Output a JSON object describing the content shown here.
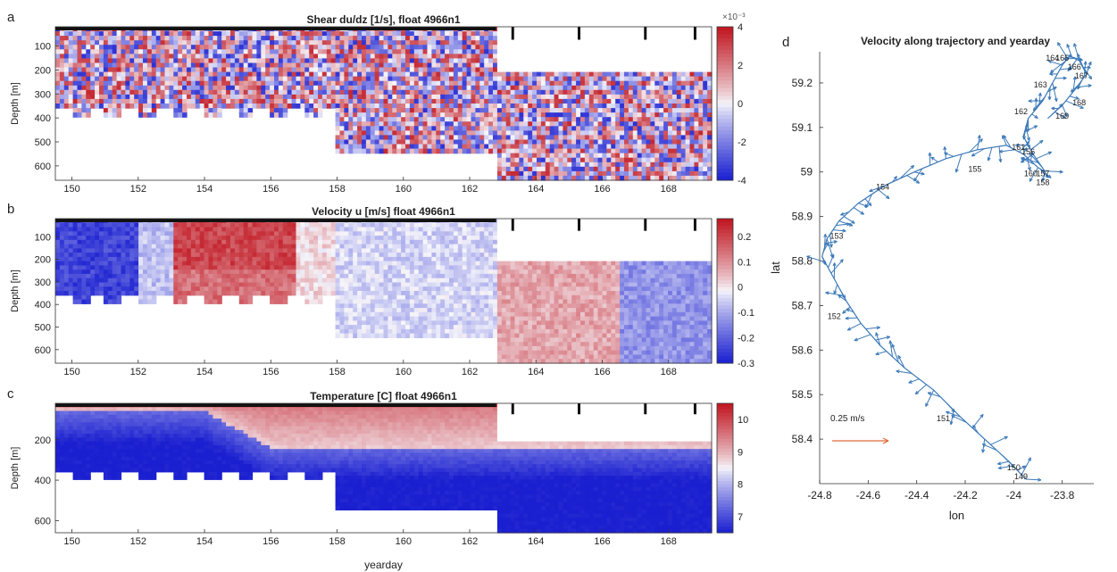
{
  "figure": {
    "colors": {
      "red": "#c0141e",
      "blue": "#1a1fd0",
      "white": "#f6f6fb",
      "traj": "#3a78b8",
      "arrow": "#e06a3a"
    }
  },
  "chart_data": [
    {
      "id": "a",
      "type": "heatmap",
      "panel_letter": "a",
      "title": "Shear du/dz [1/s], float 4966n1",
      "xlabel": "",
      "ylabel": "Depth [m]",
      "xlim": [
        149.5,
        169.3
      ],
      "ylim": [
        660,
        20
      ],
      "xticks": [
        "150",
        "152",
        "154",
        "156",
        "158",
        "160",
        "162",
        "164",
        "166",
        "168"
      ],
      "yticks": [
        "100",
        "200",
        "300",
        "400",
        "500",
        "600"
      ],
      "colorbar": {
        "ticks": [
          "4",
          "2",
          "0",
          "-2",
          "-4"
        ],
        "range": [
          -4,
          4
        ],
        "exponent": "×10⁻³"
      }
    },
    {
      "id": "b",
      "type": "heatmap",
      "panel_letter": "b",
      "title": "Velocity u [m/s] float 4966n1",
      "xlabel": "",
      "ylabel": "Depth [m]",
      "xlim": [
        149.5,
        169.3
      ],
      "ylim": [
        660,
        20
      ],
      "xticks": [
        "150",
        "152",
        "154",
        "156",
        "158",
        "160",
        "162",
        "164",
        "166",
        "168"
      ],
      "yticks": [
        "100",
        "200",
        "300",
        "400",
        "500",
        "600"
      ],
      "colorbar": {
        "ticks": [
          "0.2",
          "0.1",
          "0",
          "-0.1",
          "-0.2",
          "-0.3"
        ],
        "range": [
          -0.3,
          0.27
        ]
      }
    },
    {
      "id": "c",
      "type": "heatmap",
      "panel_letter": "c",
      "title": "Temperature [C] float 4966n1",
      "xlabel": "yearday",
      "ylabel": "Depth [m]",
      "xlim": [
        149.5,
        169.3
      ],
      "ylim": [
        660,
        20
      ],
      "xticks": [
        "150",
        "152",
        "154",
        "156",
        "158",
        "160",
        "162",
        "164",
        "166",
        "168"
      ],
      "yticks": [
        "200",
        "400",
        "600"
      ],
      "colorbar": {
        "ticks": [
          "10",
          "9",
          "8",
          "7"
        ],
        "range": [
          6.5,
          10.5
        ]
      }
    },
    {
      "id": "d",
      "type": "line",
      "panel_letter": "d",
      "title": "Velocity along trajectory and yearday",
      "xlabel": "lon",
      "ylabel": "lat",
      "xlim": [
        -24.8,
        -23.67
      ],
      "ylim": [
        58.3,
        59.27
      ],
      "xticks": [
        "-24.8",
        "-24.6",
        "-24.4",
        "-24.2",
        "-24",
        "-23.8"
      ],
      "yticks": [
        "59.2",
        "59.1",
        "59",
        "58.9",
        "58.8",
        "58.7",
        "58.6",
        "58.5",
        "58.4"
      ],
      "scale_label": "0.25 m/s",
      "trajectory": [
        {
          "lon": -23.95,
          "lat": 58.31
        },
        {
          "lon": -24.02,
          "lat": 58.35
        },
        {
          "lon": -24.12,
          "lat": 58.4
        },
        {
          "lon": -24.22,
          "lat": 58.45
        },
        {
          "lon": -24.33,
          "lat": 58.51
        },
        {
          "lon": -24.45,
          "lat": 58.56
        },
        {
          "lon": -24.55,
          "lat": 58.61
        },
        {
          "lon": -24.63,
          "lat": 58.66
        },
        {
          "lon": -24.69,
          "lat": 58.71
        },
        {
          "lon": -24.74,
          "lat": 58.76
        },
        {
          "lon": -24.79,
          "lat": 58.81
        },
        {
          "lon": -24.77,
          "lat": 58.85
        },
        {
          "lon": -24.72,
          "lat": 58.89
        },
        {
          "lon": -24.64,
          "lat": 58.93
        },
        {
          "lon": -24.53,
          "lat": 58.97
        },
        {
          "lon": -24.41,
          "lat": 59.0
        },
        {
          "lon": -24.28,
          "lat": 59.03
        },
        {
          "lon": -24.15,
          "lat": 59.05
        },
        {
          "lon": -24.03,
          "lat": 59.06
        },
        {
          "lon": -23.96,
          "lat": 59.04
        },
        {
          "lon": -23.9,
          "lat": 59.01
        },
        {
          "lon": -23.87,
          "lat": 59.0
        },
        {
          "lon": -23.92,
          "lat": 59.04
        },
        {
          "lon": -23.96,
          "lat": 59.08
        },
        {
          "lon": -23.94,
          "lat": 59.12
        },
        {
          "lon": -23.88,
          "lat": 59.16
        },
        {
          "lon": -23.84,
          "lat": 59.2
        },
        {
          "lon": -23.8,
          "lat": 59.24
        },
        {
          "lon": -23.77,
          "lat": 59.26
        },
        {
          "lon": -23.73,
          "lat": 59.25
        },
        {
          "lon": -23.7,
          "lat": 59.22
        },
        {
          "lon": -23.74,
          "lat": 59.19
        },
        {
          "lon": -23.8,
          "lat": 59.15
        },
        {
          "lon": -23.86,
          "lat": 59.12
        }
      ],
      "day_labels": [
        {
          "label": "149",
          "lon": -23.97,
          "lat": 58.31
        },
        {
          "label": "150",
          "lon": -24.0,
          "lat": 58.33
        },
        {
          "label": "151",
          "lon": -24.29,
          "lat": 58.44
        },
        {
          "label": "152",
          "lon": -24.74,
          "lat": 58.67
        },
        {
          "label": "153",
          "lon": -24.73,
          "lat": 58.85
        },
        {
          "label": "154",
          "lon": -24.54,
          "lat": 58.96
        },
        {
          "label": "155",
          "lon": -24.16,
          "lat": 59.0
        },
        {
          "label": "156",
          "lon": -23.94,
          "lat": 59.04
        },
        {
          "label": "157",
          "lon": -23.88,
          "lat": 58.99
        },
        {
          "label": "158",
          "lon": -23.88,
          "lat": 58.97
        },
        {
          "label": "160",
          "lon": -23.93,
          "lat": 58.99
        },
        {
          "label": "161",
          "lon": -23.98,
          "lat": 59.05
        },
        {
          "label": "162",
          "lon": -23.97,
          "lat": 59.13
        },
        {
          "label": "163",
          "lon": -23.89,
          "lat": 59.19
        },
        {
          "label": "164",
          "lon": -23.84,
          "lat": 59.25
        },
        {
          "label": "165",
          "lon": -23.8,
          "lat": 59.25
        },
        {
          "label": "166",
          "lon": -23.75,
          "lat": 59.23
        },
        {
          "label": "167",
          "lon": -23.72,
          "lat": 59.21
        },
        {
          "label": "168",
          "lon": -23.73,
          "lat": 59.15
        },
        {
          "label": "169",
          "lon": -23.8,
          "lat": 59.12
        }
      ]
    }
  ]
}
